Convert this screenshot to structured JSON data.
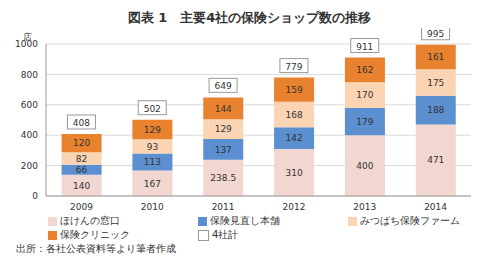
{
  "chart_data": {
    "type": "bar",
    "title": "図表 1　主要4社の保険ショップ数の推移",
    "categories": [
      "2009",
      "2010",
      "2011",
      "2012",
      "2013",
      "2014"
    ],
    "series": [
      {
        "name": "ほけんの窓口",
        "color": "#f2d6d0",
        "values": [
          140,
          167,
          238.5,
          310,
          400,
          471
        ]
      },
      {
        "name": "保険見直し本舗",
        "color": "#5b8fd0",
        "values": [
          66,
          113,
          137,
          142,
          179,
          188
        ]
      },
      {
        "name": "みつばち保険ファーム",
        "color": "#fbd4b4",
        "values": [
          82,
          93,
          129,
          168,
          170,
          175
        ]
      },
      {
        "name": "保険クリニック",
        "color": "#e8822e",
        "values": [
          120,
          129,
          144,
          159,
          162,
          161
        ]
      },
      {
        "name": "4社計",
        "type": "total",
        "color": "#ffffff",
        "values": [
          408,
          502,
          649,
          779,
          911,
          995
        ]
      }
    ],
    "ylabel": "店",
    "ylim": [
      0,
      1000
    ],
    "yticks": [
      0,
      200,
      400,
      600,
      800,
      1000
    ],
    "grid": true,
    "stacked": true,
    "data_labels": true,
    "annotations": [
      "出所：各社公表資料等より筆者作成"
    ]
  }
}
